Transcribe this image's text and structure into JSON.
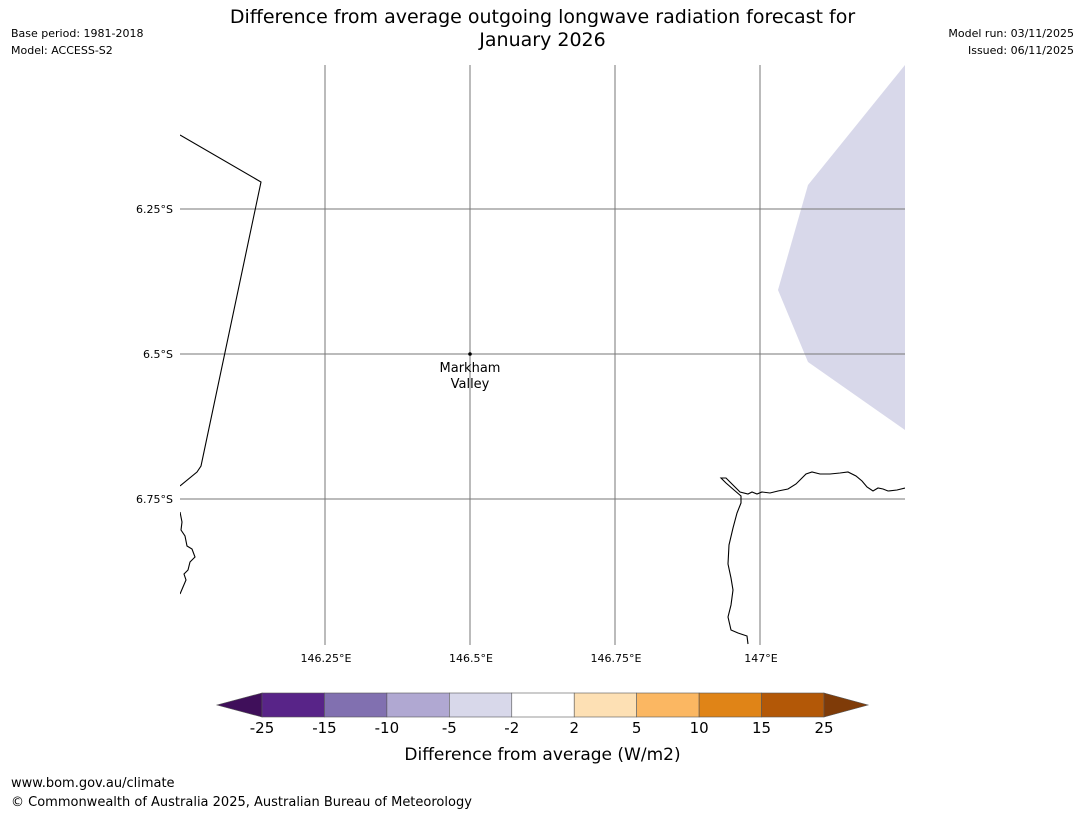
{
  "header": {
    "title_line1": "Difference from average outgoing longwave radiation forecast for",
    "title_line2": "January 2026",
    "base_period": "Base period: 1981-2018",
    "model": "Model: ACCESS-S2",
    "model_run": "Model run: 03/11/2025",
    "issued": "Issued: 06/11/2025"
  },
  "map": {
    "lat_labels": [
      "6.25°S",
      "6.5°S",
      "6.75°S"
    ],
    "lon_labels": [
      "146.25°E",
      "146.5°E",
      "146.75°E",
      "147°E"
    ],
    "location": {
      "name_line1": "Markham",
      "name_line2": "Valley",
      "lon": 146.5,
      "lat": -6.5
    },
    "shaded_region_color": "#d8d8ea",
    "shaded_region_category": "-5 to -2"
  },
  "colorbar": {
    "title": "Difference from average (W/m2)",
    "tick_labels": [
      "-25",
      "-15",
      "-10",
      "-5",
      "-2",
      "2",
      "5",
      "10",
      "15",
      "25"
    ],
    "colors": [
      "#3f0f5a",
      "#582488",
      "#8170b0",
      "#b0a8d2",
      "#d8d8ea",
      "#ffffff",
      "#fde0b4",
      "#fbb762",
      "#e08417",
      "#b35807",
      "#7f3b08"
    ]
  },
  "footer": {
    "url": "www.bom.gov.au/climate",
    "copyright": "© Commonwealth of Australia 2025, Australian Bureau of Meteorology"
  }
}
